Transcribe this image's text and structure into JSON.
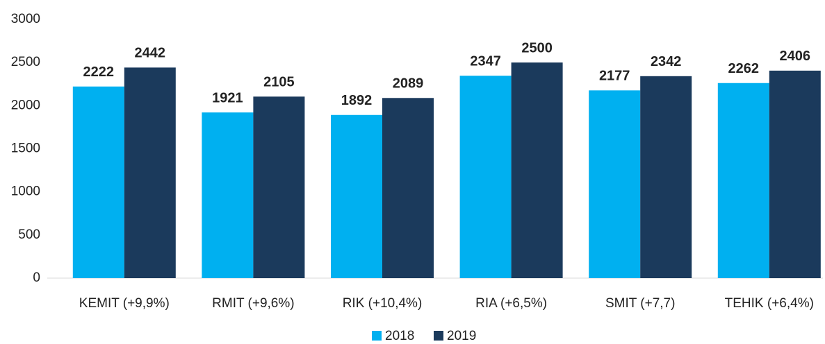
{
  "chart_data": {
    "type": "bar",
    "categories": [
      "KEMIT (+9,9%)",
      "RMIT (+9,6%)",
      "RIK (+10,4%)",
      "RIA (+6,5%)",
      "SMIT (+7,7)",
      "TEHIK (+6,4%)"
    ],
    "series": [
      {
        "name": "2018",
        "color": "#00b0f0",
        "values": [
          2222,
          1921,
          1892,
          2347,
          2177,
          2262
        ]
      },
      {
        "name": "2019",
        "color": "#1b3a5c",
        "values": [
          2442,
          2105,
          2089,
          2500,
          2342,
          2406
        ]
      }
    ],
    "ylim": [
      0,
      3000
    ],
    "yticks": [
      0,
      500,
      1000,
      1500,
      2000,
      2500,
      3000
    ],
    "grid": false,
    "legend": "bottom"
  }
}
